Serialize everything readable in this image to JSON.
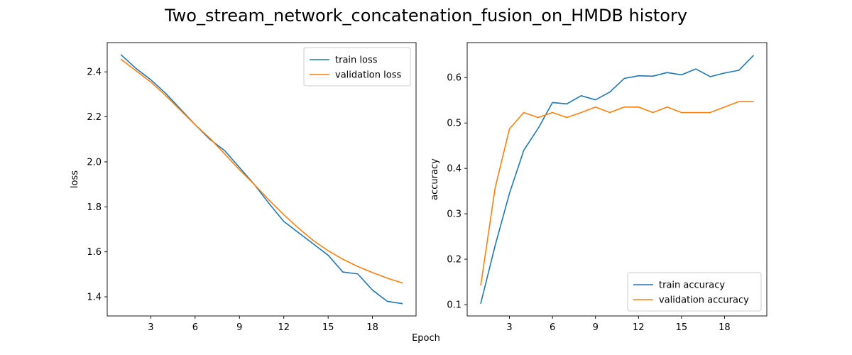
{
  "figure": {
    "title": "Two_stream_network_concatenation_fusion_on_HMDB history",
    "xlabel": "Epoch"
  },
  "chart_data": [
    {
      "type": "line",
      "ylabel": "loss",
      "xlim": [
        0.05,
        20.95
      ],
      "ylim": [
        1.315,
        2.53
      ],
      "xticks": [
        3,
        6,
        9,
        12,
        15,
        18
      ],
      "yticks": [
        1.4,
        1.6,
        1.8,
        2.0,
        2.2,
        2.4
      ],
      "ytick_labels": [
        "1.4",
        "1.6",
        "1.8",
        "2.0",
        "2.2",
        "2.4"
      ],
      "legend_position": "upper right",
      "x": [
        1,
        2,
        3,
        4,
        5,
        6,
        7,
        8,
        9,
        10,
        11,
        12,
        13,
        14,
        15,
        16,
        17,
        18,
        19,
        20
      ],
      "series": [
        {
          "name": "train loss",
          "color": "#1f77b4",
          "values": [
            2.475,
            2.415,
            2.365,
            2.305,
            2.235,
            2.165,
            2.1,
            2.05,
            1.975,
            1.9,
            1.815,
            1.735,
            1.685,
            1.635,
            1.585,
            1.51,
            1.502,
            1.43,
            1.38,
            1.37
          ]
        },
        {
          "name": "validation loss",
          "color": "#ff7f0e",
          "values": [
            2.455,
            2.405,
            2.355,
            2.295,
            2.23,
            2.165,
            2.105,
            2.035,
            1.965,
            1.9,
            1.83,
            1.765,
            1.705,
            1.65,
            1.605,
            1.567,
            1.535,
            1.508,
            1.483,
            1.462
          ]
        }
      ]
    },
    {
      "type": "line",
      "ylabel": "accuracy",
      "xlim": [
        0.05,
        20.95
      ],
      "ylim": [
        0.075,
        0.677
      ],
      "xticks": [
        3,
        6,
        9,
        12,
        15,
        18
      ],
      "yticks": [
        0.1,
        0.2,
        0.3,
        0.4,
        0.5,
        0.6
      ],
      "ytick_labels": [
        "0.1",
        "0.2",
        "0.3",
        "0.4",
        "0.5",
        "0.6"
      ],
      "legend_position": "lower right",
      "x": [
        1,
        2,
        3,
        4,
        5,
        6,
        7,
        8,
        9,
        10,
        11,
        12,
        13,
        14,
        15,
        16,
        17,
        18,
        19,
        20
      ],
      "series": [
        {
          "name": "train accuracy",
          "color": "#1f77b4",
          "values": [
            0.103,
            0.23,
            0.345,
            0.44,
            0.488,
            0.545,
            0.542,
            0.56,
            0.551,
            0.568,
            0.598,
            0.604,
            0.603,
            0.611,
            0.606,
            0.619,
            0.602,
            0.61,
            0.616,
            0.648
          ]
        },
        {
          "name": "validation accuracy",
          "color": "#ff7f0e",
          "values": [
            0.143,
            0.357,
            0.487,
            0.523,
            0.512,
            0.523,
            0.512,
            0.523,
            0.535,
            0.523,
            0.535,
            0.535,
            0.523,
            0.535,
            0.523,
            0.523,
            0.523,
            0.535,
            0.547,
            0.547
          ]
        }
      ]
    }
  ]
}
